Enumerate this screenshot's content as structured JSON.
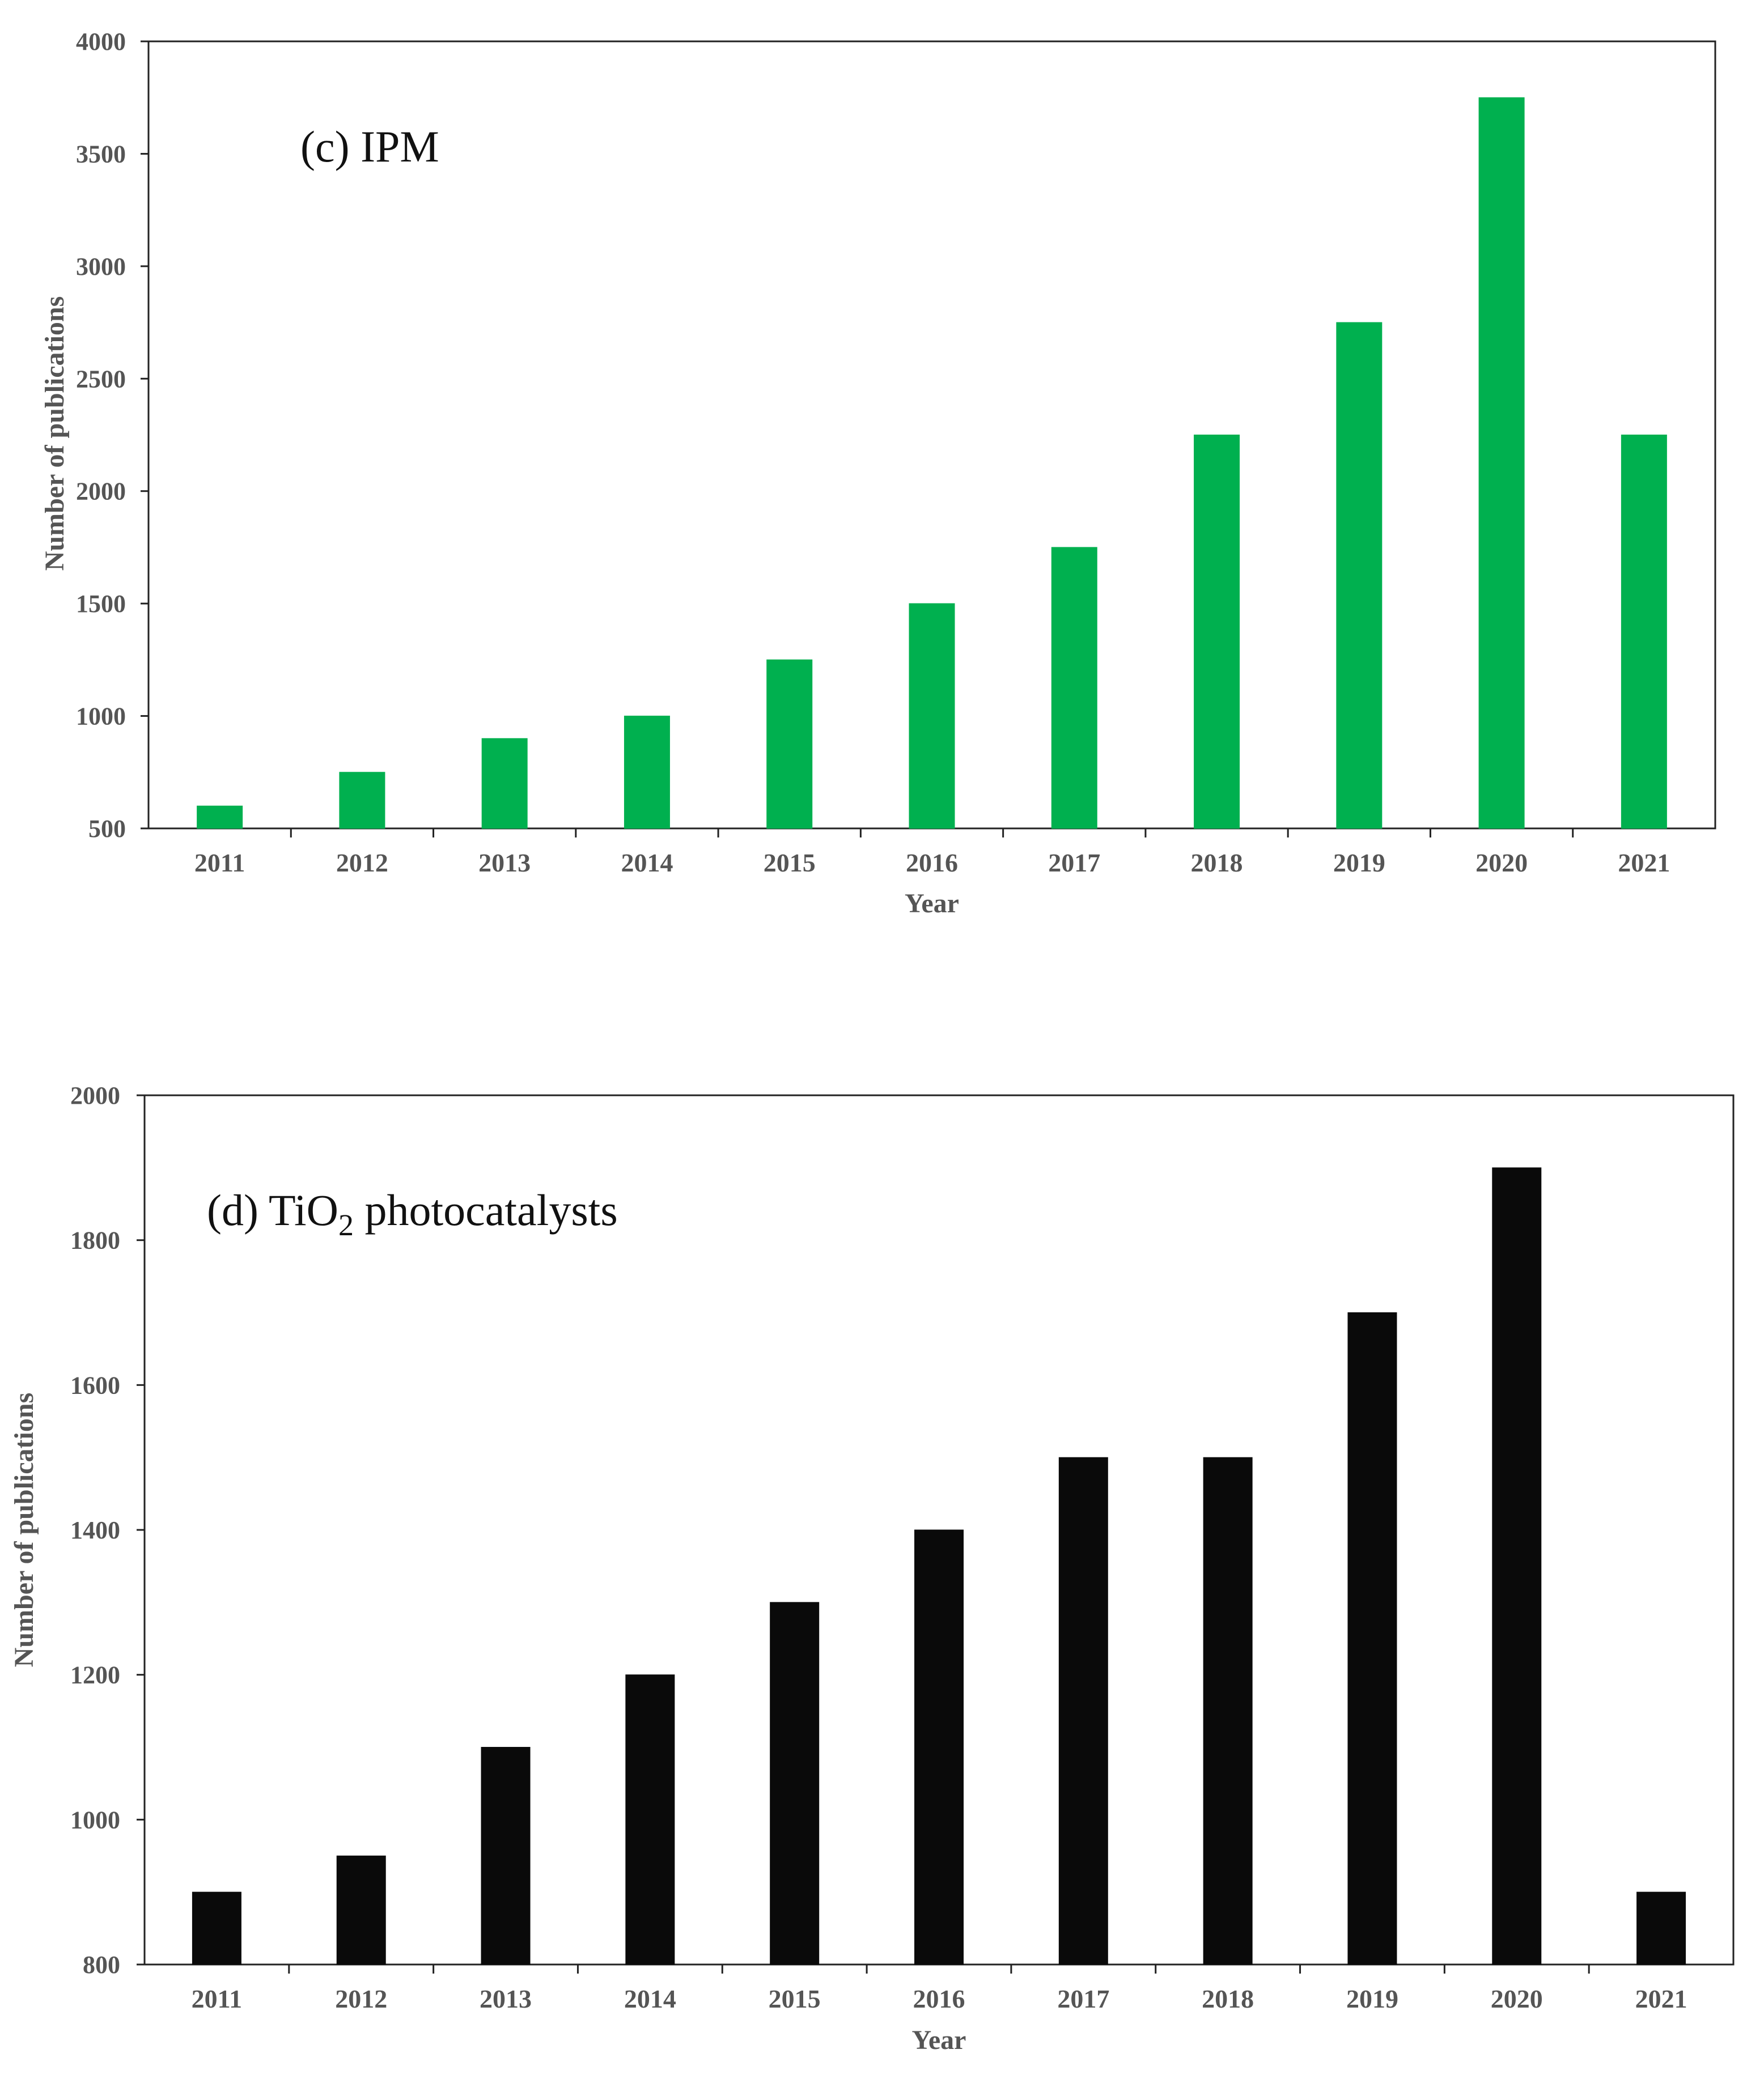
{
  "chart_data": [
    {
      "id": "c",
      "type": "bar",
      "annotation": "(c) IPM",
      "annotation_parts": {
        "prefix": "(c) IPM",
        "subscript": "",
        "suffix": ""
      },
      "categories": [
        "2011",
        "2012",
        "2013",
        "2014",
        "2015",
        "2016",
        "2017",
        "2018",
        "2019",
        "2020",
        "2021"
      ],
      "series": [
        {
          "name": "IPM",
          "color": "#00b04f",
          "values": [
            600,
            750,
            900,
            1000,
            1250,
            1500,
            1750,
            2250,
            2750,
            3750,
            2250
          ]
        }
      ],
      "xlabel": "Year",
      "ylabel": "Number of publications",
      "ylim": [
        500,
        4000
      ],
      "yticks": [
        500,
        1000,
        1500,
        2000,
        2500,
        3000,
        3500,
        4000
      ],
      "grid": false,
      "legend": "none"
    },
    {
      "id": "d",
      "type": "bar",
      "annotation": "(d) TiO2 photocatalysts",
      "annotation_parts": {
        "prefix": "(d) TiO",
        "subscript": "2",
        "suffix": " photocatalysts"
      },
      "categories": [
        "2011",
        "2012",
        "2013",
        "2014",
        "2015",
        "2016",
        "2017",
        "2018",
        "2019",
        "2020",
        "2021"
      ],
      "series": [
        {
          "name": "TiO2 photocatalysts",
          "color": "#0a0a0a",
          "values": [
            900,
            950,
            1100,
            1200,
            1300,
            1400,
            1500,
            1500,
            1700,
            1900,
            900
          ]
        }
      ],
      "xlabel": "Year",
      "ylabel": "Number of publications",
      "ylim": [
        800,
        2000
      ],
      "yticks": [
        800,
        1000,
        1200,
        1400,
        1600,
        1800,
        2000
      ],
      "grid": false,
      "legend": "none"
    }
  ]
}
